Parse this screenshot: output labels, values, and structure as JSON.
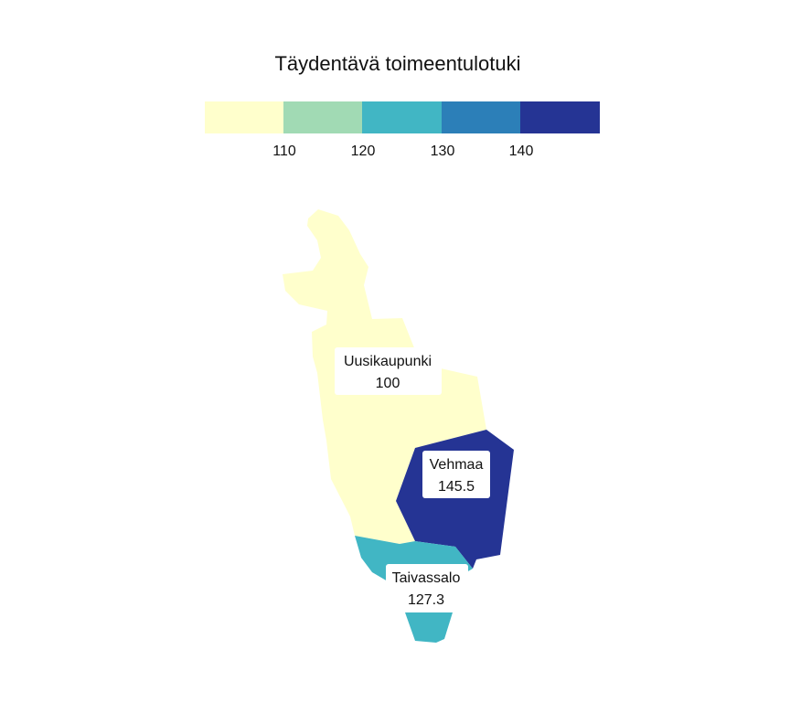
{
  "title": "Täydentävä toimeentulotuki",
  "legend": {
    "colors": [
      "#ffffcc",
      "#a1dab4",
      "#41b6c4",
      "#2c7fb8",
      "#253494"
    ],
    "ticks": [
      "110",
      "120",
      "130",
      "140"
    ]
  },
  "regions": [
    {
      "name": "Uusikaupunki",
      "value": "100",
      "color": "#ffffcc"
    },
    {
      "name": "Vehmaa",
      "value": "145.5",
      "color": "#253494"
    },
    {
      "name": "Taivassalo",
      "value": "127.3",
      "color": "#41b6c4"
    }
  ]
}
